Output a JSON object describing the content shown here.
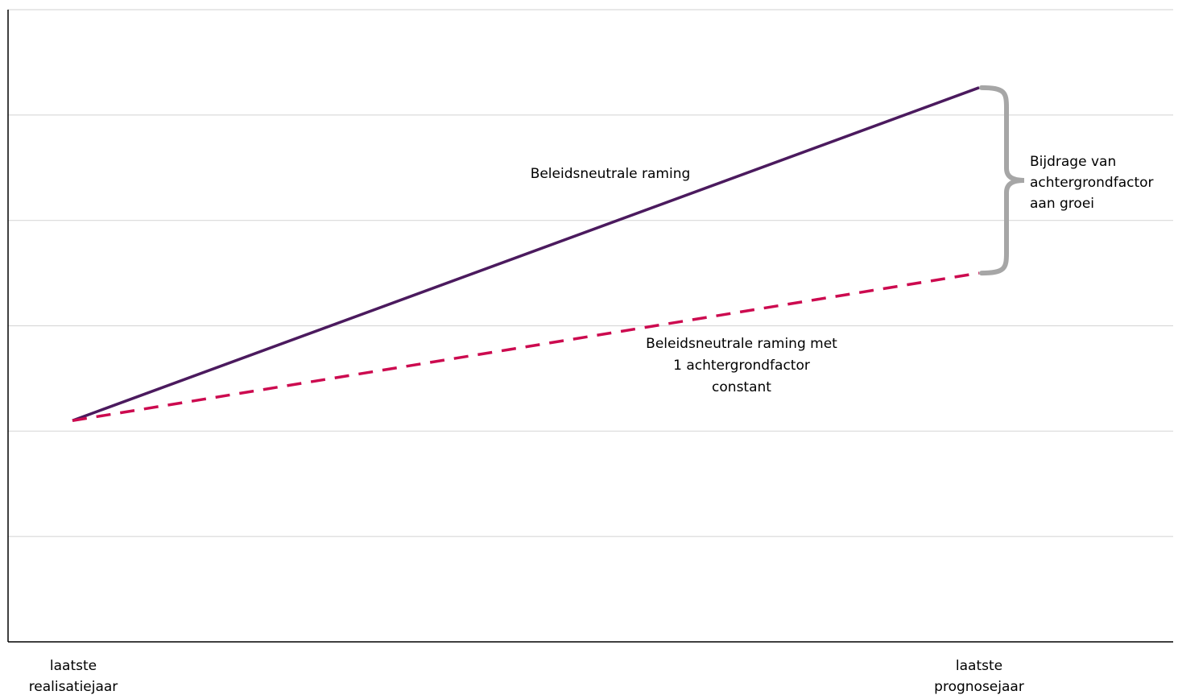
{
  "chart_data": {
    "type": "line",
    "title": "",
    "xlabel": "",
    "ylabel": "",
    "categories": [
      "laatste realisatiejaar",
      "laatste prognosejaar"
    ],
    "category_label_lines": [
      [
        "laatste",
        "realisatiejaar"
      ],
      [
        "laatste",
        "prognosejaar"
      ]
    ],
    "ylim": [
      0,
      6
    ],
    "grid": true,
    "gridline_values": [
      1,
      2,
      3,
      4,
      5,
      6
    ],
    "series": [
      {
        "values": [
          2.1,
          5.26
        ],
        "style": "solid",
        "color": "#4b1a5e"
      },
      {
        "values": [
          2.1,
          3.5
        ],
        "style": "dashed",
        "color": "#cc0a4f"
      }
    ],
    "annotations": [
      {
        "text_lines": [
          "Beleidsneutrale raming"
        ],
        "series_index": 0
      },
      {
        "text_lines": [
          "Beleidsneutrale raming met",
          "1 achtergrondfactor",
          "constant"
        ],
        "series_index": 1
      },
      {
        "text_lines": [
          "Bijdrage van",
          "achtergrondfactor",
          "aan groei"
        ],
        "bracket_range": [
          3.5,
          5.26
        ]
      }
    ],
    "colors": {
      "grid": "#d9d9d9",
      "axis": "#000000",
      "bracket": "#a6a6a6"
    }
  }
}
